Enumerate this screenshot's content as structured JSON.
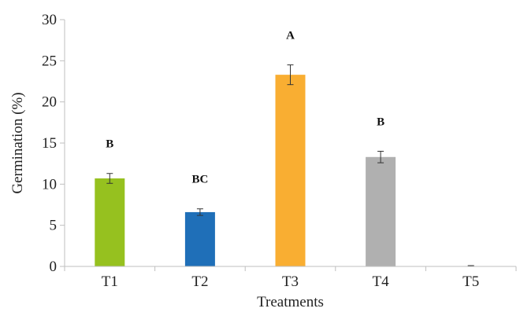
{
  "chart_data": {
    "type": "bar",
    "xlabel": "Treatments",
    "ylabel": "Germination (%)",
    "ylim": [
      0,
      30
    ],
    "yticks": [
      0,
      5,
      10,
      15,
      20,
      25,
      30
    ],
    "grid": false,
    "categories": [
      "T1",
      "T2",
      "T3",
      "T4",
      "T5"
    ],
    "values": [
      10.7,
      6.6,
      23.3,
      13.3,
      0
    ],
    "errors": [
      0.6,
      0.4,
      1.2,
      0.7,
      0.1
    ],
    "significance_labels": [
      "B",
      "BC",
      "A",
      "B",
      ""
    ],
    "colors": [
      "#96c11f",
      "#1f6fb8",
      "#f9ae32",
      "#b0b0b0",
      "#cccccc"
    ]
  }
}
